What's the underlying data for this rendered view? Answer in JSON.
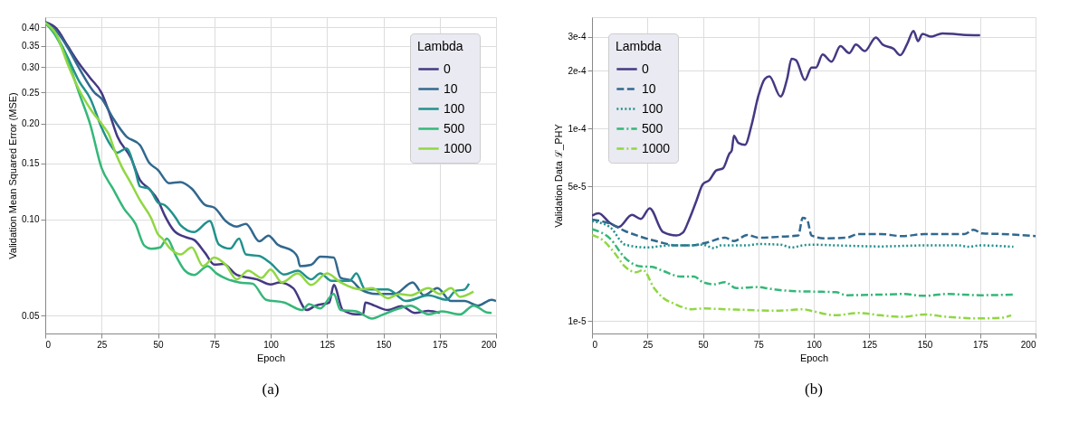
{
  "chart_data": [
    {
      "type": "line",
      "xlabel": "Epoch",
      "ylabel": "Validation Mean Squared Error (MSE)",
      "legend_title": "Lambda",
      "legend": "top right",
      "grid": true,
      "log": "y",
      "annotations": [
        "(a)"
      ],
      "xlim": [
        0,
        200
      ],
      "xticks": [
        0,
        25,
        50,
        75,
        100,
        125,
        150,
        175,
        200
      ],
      "ylim": [
        0.044,
        0.43
      ],
      "yticks": [
        0.05,
        {
          "value": 0.1,
          "label": "0.10"
        },
        0.15,
        {
          "value": 0.2,
          "label": "0.20"
        },
        0.25,
        {
          "value": 0.3,
          "label": "0.30"
        },
        0.35,
        {
          "value": 0.4,
          "label": "0.40"
        }
      ],
      "series": [
        {
          "name": "0",
          "color": "#443983",
          "line_style": "solid",
          "x": [
            0,
            5,
            10,
            15,
            20,
            25,
            28,
            32,
            38,
            42,
            46,
            50,
            53,
            57,
            62,
            66,
            71,
            75,
            79,
            85,
            94,
            100,
            104,
            110,
            116,
            120,
            126,
            128,
            132,
            138,
            141,
            142,
            146,
            152,
            158,
            164,
            170,
            175
          ],
          "values": [
            0.415,
            0.396,
            0.349,
            0.308,
            0.277,
            0.249,
            0.22,
            0.182,
            0.156,
            0.133,
            0.125,
            0.115,
            0.103,
            0.0925,
            0.0882,
            0.0864,
            0.0785,
            0.0723,
            0.0726,
            0.0671,
            0.065,
            0.0626,
            0.0636,
            0.061,
            0.0521,
            0.0538,
            0.055,
            0.0624,
            0.0521,
            0.0505,
            0.0505,
            0.055,
            0.0538,
            0.0521,
            0.0536,
            0.051,
            0.0518,
            0.051
          ]
        },
        {
          "name": "10",
          "color": "#31688e",
          "line_style": "solid",
          "x": [
            0,
            5,
            10,
            15,
            22,
            25,
            30,
            36,
            42,
            46,
            50,
            55,
            60,
            65,
            71,
            75,
            80,
            85,
            89,
            95,
            99,
            103,
            110,
            112,
            113,
            118,
            122,
            128,
            131,
            136,
            140,
            147,
            155,
            163,
            168,
            174,
            180,
            186,
            192,
            198,
            200
          ],
          "values": [
            0.415,
            0.388,
            0.345,
            0.298,
            0.249,
            0.239,
            0.208,
            0.182,
            0.171,
            0.151,
            0.143,
            0.13,
            0.131,
            0.125,
            0.111,
            0.109,
            0.099,
            0.095,
            0.097,
            0.0855,
            0.0891,
            0.0836,
            0.0794,
            0.0761,
            0.0715,
            0.0722,
            0.0765,
            0.0761,
            0.0657,
            0.0643,
            0.0604,
            0.0585,
            0.0585,
            0.0636,
            0.0579,
            0.061,
            0.0556,
            0.0556,
            0.0538,
            0.0561,
            0.0556
          ]
        },
        {
          "name": "100",
          "color": "#21918c",
          "line_style": "solid",
          "x": [
            0,
            5,
            10,
            15,
            20,
            25,
            29,
            32,
            36,
            40,
            42,
            46,
            50,
            53,
            58,
            60,
            66,
            73,
            77,
            82,
            86,
            89,
            95,
            100,
            106,
            112,
            118,
            122,
            127,
            135,
            138,
            142,
            152,
            160,
            170,
            178,
            182,
            186,
            188
          ],
          "values": [
            0.413,
            0.376,
            0.321,
            0.271,
            0.239,
            0.194,
            0.171,
            0.162,
            0.167,
            0.142,
            0.127,
            0.125,
            0.113,
            0.111,
            0.101,
            0.096,
            0.0914,
            0.099,
            0.0836,
            0.0811,
            0.0872,
            0.0778,
            0.0769,
            0.073,
            0.0673,
            0.0692,
            0.065,
            0.0678,
            0.0643,
            0.0643,
            0.0678,
            0.0604,
            0.0604,
            0.0556,
            0.0579,
            0.0561,
            0.0598,
            0.0604,
            0.063
          ]
        },
        {
          "name": "500",
          "color": "#35b779",
          "line_style": "solid",
          "x": [
            0,
            5,
            10,
            15,
            20,
            25,
            30,
            35,
            40,
            44,
            47,
            51,
            54,
            58,
            62,
            66,
            72,
            76,
            81,
            86,
            92,
            98,
            106,
            114,
            117,
            122,
            128,
            131,
            138,
            145,
            150,
            157,
            162,
            170,
            176,
            184,
            190,
            196,
            198
          ],
          "values": [
            0.413,
            0.372,
            0.314,
            0.249,
            0.198,
            0.145,
            0.125,
            0.108,
            0.097,
            0.0828,
            0.081,
            0.0818,
            0.0872,
            0.0769,
            0.0692,
            0.0671,
            0.0715,
            0.0678,
            0.065,
            0.0636,
            0.063,
            0.0561,
            0.055,
            0.0521,
            0.0544,
            0.0527,
            0.0585,
            0.0521,
            0.0516,
            0.049,
            0.0505,
            0.0527,
            0.0538,
            0.0505,
            0.0516,
            0.0505,
            0.0538,
            0.0512,
            0.051
          ]
        },
        {
          "name": "1000",
          "color": "#90d743",
          "line_style": "solid",
          "x": [
            0,
            5,
            10,
            15,
            20,
            26,
            28,
            31,
            34,
            38,
            42,
            47,
            50,
            52,
            55,
            60,
            65,
            70,
            75,
            80,
            85,
            90,
            96,
            100,
            105,
            112,
            118,
            125,
            131,
            140,
            145,
            152,
            157,
            162,
            170,
            175,
            180,
            184,
            190
          ],
          "values": [
            0.413,
            0.379,
            0.306,
            0.255,
            0.222,
            0.195,
            0.186,
            0.163,
            0.146,
            0.13,
            0.115,
            0.101,
            0.09,
            0.0872,
            0.0818,
            0.0778,
            0.0818,
            0.0715,
            0.0761,
            0.0723,
            0.065,
            0.0692,
            0.0657,
            0.0698,
            0.0636,
            0.0678,
            0.0624,
            0.0678,
            0.0636,
            0.0604,
            0.061,
            0.0567,
            0.0585,
            0.0579,
            0.061,
            0.0585,
            0.061,
            0.0573,
            0.0595
          ]
        }
      ]
    },
    {
      "type": "line",
      "xlabel": "Epoch",
      "ylabel": "Validation Data ℒ_PHY",
      "legend_title": "Lambda",
      "legend": "top left",
      "grid": true,
      "log": "y",
      "annotations": [
        "(b)"
      ],
      "xlim": [
        0,
        200
      ],
      "xticks": [
        0,
        25,
        50,
        75,
        100,
        125,
        150,
        175,
        200
      ],
      "ylim": [
        8.6e-06,
        0.00038
      ],
      "yticks": [
        {
          "value": 1e-05,
          "label": "1e-5"
        },
        {
          "value": 5e-05,
          "label": "5e-5"
        },
        {
          "value": 0.0001,
          "label": "1e-4"
        },
        {
          "value": 0.0002,
          "label": "2e-4"
        },
        {
          "value": 0.0003,
          "label": "3e-4"
        }
      ],
      "series": [
        {
          "name": "0",
          "color": "#443983",
          "line_style": "solid",
          "x": [
            0,
            3,
            8,
            12,
            18,
            22,
            26,
            32,
            38,
            41,
            44,
            47,
            50,
            53,
            56,
            59,
            62,
            63,
            64,
            66,
            69,
            72,
            75,
            78,
            80,
            85,
            88,
            90,
            92,
            96,
            99,
            101,
            104,
            108,
            112,
            116,
            119,
            123,
            128,
            131,
            136,
            139,
            142,
            145,
            147,
            149,
            153,
            158,
            163,
            167,
            175
          ],
          "values": [
            3.53e-05,
            3.63e-05,
            3.24e-05,
            3.08e-05,
            3.56e-05,
            3.39e-05,
            3.85e-05,
            2.9e-05,
            2.78e-05,
            2.88e-05,
            3.41e-05,
            4.19e-05,
            5.14e-05,
            5.41e-05,
            6.06e-05,
            6.21e-05,
            7.43e-05,
            7.69e-05,
            9.18e-05,
            8.43e-05,
            8.24e-05,
            0.000105,
            0.000148,
            0.000182,
            0.000187,
            0.000147,
            0.000182,
            0.000231,
            0.000227,
            0.000179,
            0.000208,
            0.000208,
            0.000243,
            0.000223,
            0.000269,
            0.000247,
            0.000274,
            0.000253,
            0.000298,
            0.000274,
            0.00026,
            0.000241,
            0.000274,
            0.000322,
            0.000285,
            0.000311,
            0.000301,
            0.000313,
            0.000311,
            0.000308,
            0.000306
          ]
        },
        {
          "name": "10",
          "color": "#31688e",
          "line_style": "dashed",
          "x": [
            0,
            8,
            15,
            22,
            30,
            38,
            45,
            52,
            60,
            64,
            70,
            75,
            85,
            93,
            95,
            97,
            99,
            105,
            115,
            120,
            130,
            140,
            150,
            160,
            168,
            172,
            176,
            185,
            200
          ],
          "values": [
            3.36e-05,
            3.21e-05,
            2.93e-05,
            2.74e-05,
            2.58e-05,
            2.47e-05,
            2.47e-05,
            2.56e-05,
            2.71e-05,
            2.6e-05,
            2.8e-05,
            2.71e-05,
            2.74e-05,
            2.78e-05,
            3.44e-05,
            3.36e-05,
            2.78e-05,
            2.69e-05,
            2.71e-05,
            2.83e-05,
            2.83e-05,
            2.76e-05,
            2.83e-05,
            2.83e-05,
            2.83e-05,
            2.98e-05,
            2.85e-05,
            2.83e-05,
            2.76e-05
          ]
        },
        {
          "name": "100",
          "color": "#21918c",
          "line_style": "dotted",
          "x": [
            0,
            8,
            15,
            25,
            35,
            42,
            50,
            55,
            58,
            70,
            75,
            85,
            90,
            95,
            100,
            110,
            130,
            150,
            165,
            170,
            175,
            190
          ],
          "values": [
            3.3e-05,
            3.08e-05,
            2.49e-05,
            2.41e-05,
            2.47e-05,
            2.47e-05,
            2.49e-05,
            2.39e-05,
            2.47e-05,
            2.47e-05,
            2.51e-05,
            2.49e-05,
            2.41e-05,
            2.47e-05,
            2.49e-05,
            2.47e-05,
            2.44e-05,
            2.47e-05,
            2.47e-05,
            2.43e-05,
            2.47e-05,
            2.43e-05
          ]
        },
        {
          "name": "500",
          "color": "#35b779",
          "line_style": "dashdot",
          "x": [
            0,
            8,
            15,
            22,
            27,
            32,
            40,
            46,
            50,
            55,
            60,
            65,
            75,
            80,
            90,
            100,
            110,
            115,
            130,
            140,
            150,
            160,
            175,
            190
          ],
          "values": [
            3e-05,
            2.69e-05,
            2.12e-05,
            1.92e-05,
            1.91e-05,
            1.82e-05,
            1.7e-05,
            1.7e-05,
            1.59e-05,
            1.55e-05,
            1.59e-05,
            1.48e-05,
            1.5e-05,
            1.47e-05,
            1.43e-05,
            1.42e-05,
            1.41e-05,
            1.36e-05,
            1.37e-05,
            1.38e-05,
            1.35e-05,
            1.38e-05,
            1.36e-05,
            1.37e-05
          ]
        },
        {
          "name": "1000",
          "color": "#90d743",
          "line_style": "dashdot",
          "x": [
            0,
            5,
            10,
            15,
            20,
            23,
            28,
            32,
            37,
            45,
            50,
            60,
            70,
            80,
            90,
            95,
            100,
            110,
            120,
            130,
            140,
            150,
            160,
            165,
            175,
            185,
            189
          ],
          "values": [
            2.8e-05,
            2.62e-05,
            2.27e-05,
            1.91e-05,
            1.79e-05,
            1.84e-05,
            1.48e-05,
            1.32e-05,
            1.23e-05,
            1.15e-05,
            1.16e-05,
            1.15e-05,
            1.14e-05,
            1.13e-05,
            1.14e-05,
            1.15e-05,
            1.12e-05,
            1.07e-05,
            1.1e-05,
            1.07e-05,
            1.05e-05,
            1.08e-05,
            1.05e-05,
            1.04e-05,
            1.03e-05,
            1.04e-05,
            1.07e-05
          ]
        }
      ]
    }
  ]
}
